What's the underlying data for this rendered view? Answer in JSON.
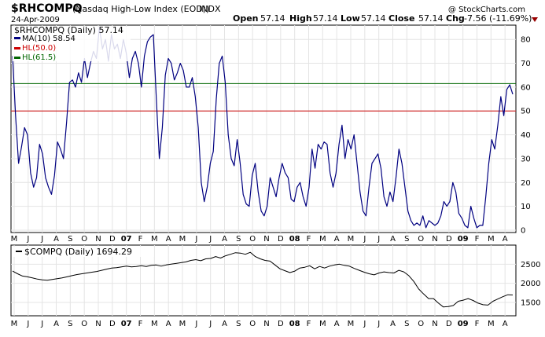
{
  "header": {
    "symbol": "$RHCOMPQ",
    "description": "(Nasdaq High-Low Index (EOD))",
    "exchange": "INDX",
    "date": "24-Apr-2009",
    "watermark": "@ StockCharts.com",
    "open_label": "Open",
    "open": "57.14",
    "high_label": "High",
    "high": "57.14",
    "low_label": "Low",
    "low": "57.14",
    "close_label": "Close",
    "close": "57.14",
    "chg_label": "Chg",
    "chg": "-7.56 (-11.69%)",
    "chg_color": "#990000"
  },
  "colors": {
    "main_line": "#000080",
    "hl50": "#cc0000",
    "hl615": "#006600",
    "lower_line": "#000000",
    "grid": "#e4e4e4",
    "border": "#000000"
  },
  "x_axis": {
    "months": [
      "M",
      "J",
      "J",
      "A",
      "S",
      "O",
      "N",
      "D",
      "07",
      "F",
      "M",
      "A",
      "M",
      "J",
      "J",
      "A",
      "S",
      "O",
      "N",
      "D",
      "08",
      "F",
      "M",
      "A",
      "M",
      "J",
      "J",
      "A",
      "S",
      "O",
      "N",
      "D",
      "09",
      "F",
      "M",
      "A"
    ],
    "year_labels": [
      "07",
      "08",
      "09"
    ]
  },
  "chart_data": [
    {
      "type": "line",
      "title": "$RHCOMPQ (Daily) 57.14",
      "y_ticks": [
        0,
        10,
        20,
        30,
        40,
        50,
        60,
        70,
        80
      ],
      "ylim": [
        -1,
        86
      ],
      "grid": true,
      "legend_position": "top-left",
      "series": [
        {
          "name": "MA(10) 58.54",
          "color": "#000080",
          "values": [
            73,
            48,
            28,
            35,
            43,
            40,
            24,
            18,
            22,
            36,
            32,
            22,
            18,
            15,
            23,
            37,
            34,
            30,
            45,
            62,
            63,
            60,
            66,
            62,
            72,
            64,
            70,
            75,
            72,
            85,
            76,
            80,
            71,
            82,
            76,
            78,
            72,
            80,
            74,
            64,
            72,
            75,
            70,
            60,
            73,
            79,
            81,
            82,
            55,
            30,
            43,
            65,
            72,
            70,
            63,
            66,
            70,
            67,
            60,
            60,
            64,
            56,
            43,
            20,
            12,
            18,
            28,
            33,
            55,
            70,
            73,
            62,
            40,
            30,
            27,
            38,
            28,
            15,
            11,
            10,
            23,
            28,
            16,
            8,
            6,
            10,
            22,
            18,
            14,
            22,
            28,
            24,
            22,
            13,
            12,
            18,
            20,
            14,
            10,
            18,
            34,
            26,
            36,
            34,
            37,
            36,
            24,
            18,
            24,
            36,
            44,
            30,
            38,
            34,
            40,
            28,
            16,
            8,
            6,
            18,
            28,
            30,
            32,
            26,
            14,
            10,
            16,
            12,
            22,
            34,
            28,
            18,
            8,
            4,
            2,
            3,
            2,
            6,
            1,
            4,
            3,
            2,
            3,
            6,
            12,
            10,
            12,
            20,
            16,
            7,
            5,
            2,
            1,
            10,
            5,
            1,
            2,
            2,
            14,
            28,
            38,
            34,
            44,
            56,
            48,
            59,
            61,
            57
          ],
          "ma_label_value": "58.54"
        },
        {
          "name": "HL(50.0)",
          "color": "#cc0000",
          "constant": 50.0
        },
        {
          "name": "HL(61.5)",
          "color": "#006600",
          "constant": 61.5
        }
      ]
    },
    {
      "type": "line",
      "title": "$COMPQ (Daily) 1694.29",
      "y_ticks": [
        1500,
        2000,
        2500
      ],
      "ylim": [
        1150,
        3000
      ],
      "grid": true,
      "legend_position": "top-left",
      "series": [
        {
          "name": "$COMPQ (Daily) 1694.29",
          "color": "#000000",
          "values": [
            2320,
            2250,
            2190,
            2170,
            2140,
            2110,
            2090,
            2080,
            2100,
            2120,
            2140,
            2170,
            2200,
            2230,
            2250,
            2270,
            2290,
            2310,
            2340,
            2370,
            2400,
            2410,
            2430,
            2450,
            2430,
            2440,
            2460,
            2440,
            2470,
            2480,
            2450,
            2480,
            2500,
            2520,
            2540,
            2560,
            2600,
            2620,
            2590,
            2640,
            2650,
            2700,
            2660,
            2720,
            2760,
            2800,
            2790,
            2760,
            2810,
            2700,
            2640,
            2600,
            2580,
            2480,
            2380,
            2330,
            2280,
            2320,
            2400,
            2420,
            2460,
            2380,
            2440,
            2400,
            2450,
            2480,
            2500,
            2470,
            2450,
            2390,
            2340,
            2290,
            2250,
            2220,
            2270,
            2300,
            2280,
            2270,
            2340,
            2300,
            2200,
            2050,
            1850,
            1720,
            1600,
            1600,
            1480,
            1380,
            1390,
            1420,
            1530,
            1560,
            1600,
            1550,
            1480,
            1440,
            1430,
            1530,
            1590,
            1650,
            1700,
            1694
          ]
        }
      ]
    }
  ]
}
